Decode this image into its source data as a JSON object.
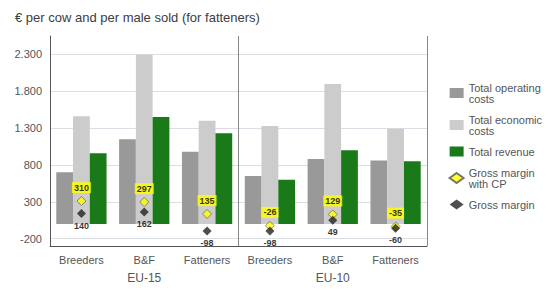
{
  "chart_data": {
    "type": "bar",
    "title": "€ per cow and per male sold (for fatteners)",
    "categories": [
      "Breeders",
      "B&F",
      "Fatteners",
      "Breeders",
      "B&F",
      "Fatteners"
    ],
    "annotations": [
      "EU-15",
      "EU-10"
    ],
    "series": [
      {
        "name": "Total operating\ncosts",
        "type": "bar",
        "color": "#999999",
        "values": [
          700,
          1150,
          980,
          650,
          880,
          860
        ]
      },
      {
        "name": "Total economic\ncosts",
        "type": "bar",
        "color": "#cccccc",
        "values": [
          1460,
          2300,
          1400,
          1330,
          1900,
          1290
        ]
      },
      {
        "name": "Total revenue",
        "type": "bar",
        "color": "#1a7a1a",
        "values": [
          960,
          1450,
          1230,
          600,
          1000,
          850
        ]
      },
      {
        "name": "Gross margin\nwith CP",
        "type": "scatter",
        "marker": "diamond",
        "color": "#ffff00",
        "data_labels": true,
        "values": [
          310,
          297,
          135,
          -26,
          129,
          -35
        ]
      },
      {
        "name": "Gross margin",
        "type": "scatter",
        "marker": "diamond",
        "color": "#222222",
        "data_labels": true,
        "values": [
          140,
          162,
          -98,
          -98,
          49,
          -60
        ]
      }
    ],
    "ylim": [
      -300,
      2550
    ],
    "yticks": [
      -200,
      300,
      800,
      {
        "value": 1300,
        "label": "1.300"
      },
      {
        "value": 1800,
        "label": "1.800"
      },
      {
        "value": 2300,
        "label": "2.300"
      }
    ],
    "grid": true,
    "legend": "right"
  }
}
